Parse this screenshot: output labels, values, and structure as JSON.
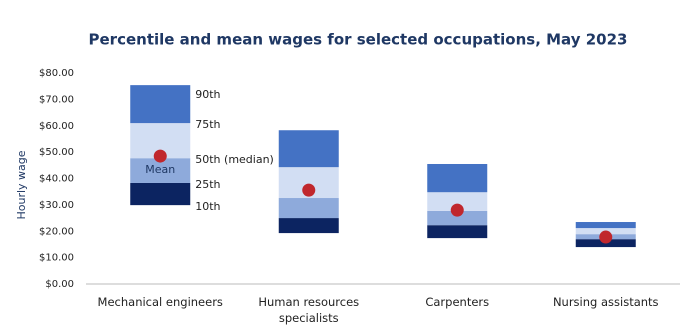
{
  "chart_data": {
    "type": "floating-percentile-bar",
    "title": "Percentile and mean wages for selected occupations,  May 2023",
    "y_label": "Hourly wage",
    "categories": [
      "Mechanical engineers",
      "Human resources specialists",
      "Carpenters",
      "Nursing assistants"
    ],
    "series": [
      {
        "name": "10th",
        "values": [
          29.9,
          19.3,
          17.4,
          14.0
        ]
      },
      {
        "name": "25th",
        "color": "#0c2461",
        "values": [
          38.3,
          25.0,
          22.3,
          17.0
        ]
      },
      {
        "name": "50th (median)",
        "color": "#8eaadb",
        "values": [
          47.7,
          32.6,
          27.7,
          18.9
        ]
      },
      {
        "name": "75th",
        "color": "#d2def3",
        "values": [
          61.0,
          44.3,
          34.8,
          21.2
        ]
      },
      {
        "name": "90th",
        "color": "#4472c4",
        "values": [
          75.4,
          58.3,
          45.5,
          23.5
        ]
      }
    ],
    "mean": {
      "name": "Mean",
      "color": "#c0272d",
      "values": [
        48.5,
        35.6,
        28.0,
        17.8
      ]
    },
    "ylim": [
      0,
      80
    ],
    "yticks": [
      {
        "value": 0,
        "label": "$0.00"
      },
      {
        "value": 10,
        "label": "$10.00"
      },
      {
        "value": 20,
        "label": "$20.00"
      },
      {
        "value": 30,
        "label": "$30.00"
      },
      {
        "value": 40,
        "label": "$40.00"
      },
      {
        "value": 50,
        "label": "$50.00"
      },
      {
        "value": 60,
        "label": "$60.00"
      },
      {
        "value": 70,
        "label": "$70.00"
      },
      {
        "value": 80,
        "label": "$80.00"
      }
    ]
  }
}
